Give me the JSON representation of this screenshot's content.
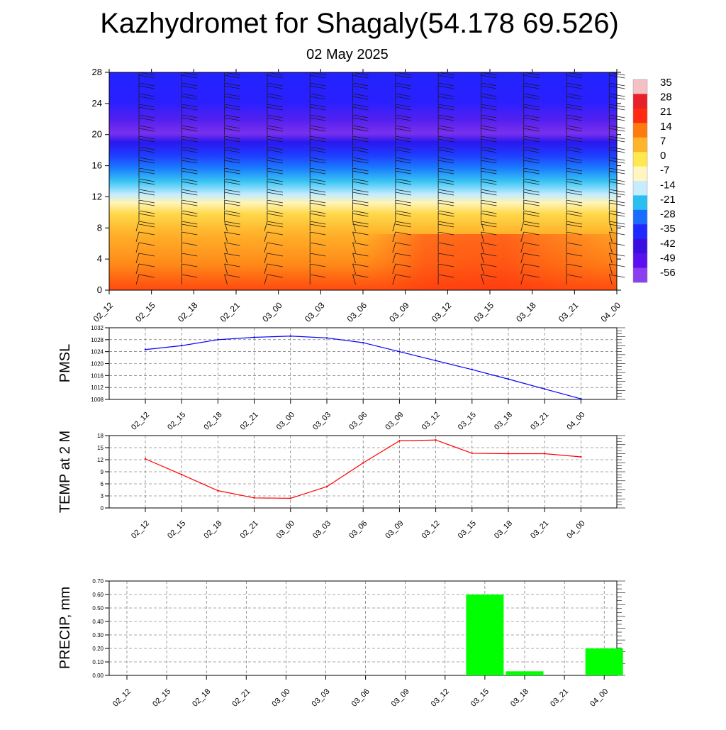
{
  "title": "Kazhydromet for Shagaly(54.178 69.526)",
  "subtitle": "02 May 2025",
  "time_labels": [
    "02_12",
    "02_15",
    "02_18",
    "02_21",
    "03_00",
    "03_03",
    "03_06",
    "03_09",
    "03_12",
    "03_15",
    "03_18",
    "03_21",
    "04_00"
  ],
  "chart_data": [
    {
      "type": "heatmap",
      "description": "Vertical cross-section of temperature with wind barbs",
      "x": [
        "02_12",
        "02_15",
        "02_18",
        "02_21",
        "03_00",
        "03_03",
        "03_06",
        "03_09",
        "03_12",
        "03_15",
        "03_18",
        "03_21",
        "04_00"
      ],
      "ylim": [
        0,
        28
      ],
      "yticks": [
        0,
        4,
        8,
        12,
        16,
        20,
        24,
        28
      ],
      "colorbar": {
        "labels": [
          "35",
          "28",
          "21",
          "14",
          "7",
          "0",
          "-7",
          "-14",
          "-21",
          "-28",
          "-35",
          "-42",
          "-49",
          "-56"
        ],
        "colors": [
          "#f4c0c4",
          "#e8202a",
          "#ff2a10",
          "#ff7a10",
          "#ffb52a",
          "#ffe850",
          "#fff6c0",
          "#c8ecff",
          "#29bff0",
          "#1a6bff",
          "#2028ff",
          "#3a10e0",
          "#5a10f0",
          "#8a3ff0"
        ]
      },
      "zero_isotherm_height": {
        "02_12": 11,
        "03_00": 11.5,
        "03_09": 12,
        "03_12": 12.5,
        "04_00": 12.5
      }
    },
    {
      "type": "line",
      "ylabel": "PMSL",
      "ylim": [
        1008,
        1032
      ],
      "yticks": [
        1008,
        1012,
        1016,
        1020,
        1024,
        1028,
        1032
      ],
      "color": "#0000ff",
      "x": [
        "02_12",
        "02_15",
        "02_18",
        "02_21",
        "03_00",
        "03_03",
        "03_06",
        "03_09",
        "03_12",
        "03_15",
        "03_18",
        "03_21",
        "04_00"
      ],
      "values": [
        1024.7,
        1026.0,
        1028.0,
        1028.8,
        1029.2,
        1028.6,
        1027.0,
        1024.0,
        1021.0,
        1018.0,
        1014.8,
        1011.5,
        1008.2
      ]
    },
    {
      "type": "line",
      "ylabel": "TEMP at 2 M",
      "ylim": [
        0,
        18
      ],
      "yticks": [
        0,
        3,
        6,
        9,
        12,
        15,
        18
      ],
      "color": "#ff0000",
      "x": [
        "02_12",
        "02_15",
        "02_18",
        "02_21",
        "03_00",
        "03_03",
        "03_06",
        "03_09",
        "03_12",
        "03_15",
        "03_18",
        "03_21",
        "04_00"
      ],
      "values": [
        12.2,
        8.3,
        4.3,
        2.5,
        2.4,
        5.3,
        11.2,
        16.7,
        16.9,
        13.6,
        13.5,
        13.5,
        12.7
      ]
    },
    {
      "type": "bar",
      "ylabel": "PRECIP, mm",
      "ylim": [
        0,
        0.7
      ],
      "yticks": [
        "0.00",
        "0.10",
        "0.20",
        "0.30",
        "0.40",
        "0.50",
        "0.60",
        "0.70"
      ],
      "color": "#00ff00",
      "categories": [
        "02_12",
        "02_15",
        "02_18",
        "02_21",
        "03_00",
        "03_03",
        "03_06",
        "03_09",
        "03_12",
        "03_15",
        "03_18",
        "03_21",
        "04_00"
      ],
      "values": [
        0,
        0,
        0,
        0,
        0,
        0,
        0,
        0,
        0,
        0.6,
        0.03,
        0,
        0.2
      ]
    }
  ]
}
